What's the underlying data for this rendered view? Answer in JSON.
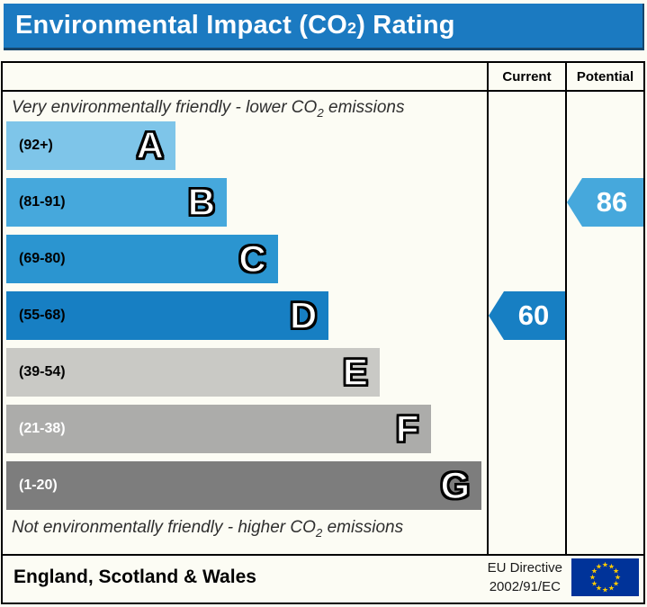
{
  "title": {
    "prefix": "Environmental Impact (CO",
    "sub": "2",
    "suffix": ") Rating"
  },
  "colors": {
    "title_bg": "#1b7ac1",
    "eu_flag_bg": "#003399",
    "eu_star": "#ffcc00"
  },
  "header": {
    "current": "Current",
    "potential": "Potential"
  },
  "notes": {
    "top": {
      "prefix": "Very environmentally friendly - lower CO",
      "sub": "2",
      "suffix": " emissions"
    },
    "bottom": {
      "prefix": "Not environmentally friendly - higher CO",
      "sub": "2",
      "suffix": " emissions"
    }
  },
  "chart_data": {
    "type": "bar",
    "title": "Environmental Impact (CO2) Rating",
    "bands": [
      {
        "letter": "A",
        "range_label": "(92+)",
        "range_min": 92,
        "range_max": null,
        "color": "#7ec5e9",
        "width_pct": 35.2,
        "label_color": "#000000"
      },
      {
        "letter": "B",
        "range_label": "(81-91)",
        "range_min": 81,
        "range_max": 91,
        "color": "#46a8dc",
        "width_pct": 45.9,
        "label_color": "#000000"
      },
      {
        "letter": "C",
        "range_label": "(69-80)",
        "range_min": 69,
        "range_max": 80,
        "color": "#2b95d0",
        "width_pct": 56.5,
        "label_color": "#000000"
      },
      {
        "letter": "D",
        "range_label": "(55-68)",
        "range_min": 55,
        "range_max": 68,
        "color": "#177fc3",
        "width_pct": 67.1,
        "label_color": "#000000"
      },
      {
        "letter": "E",
        "range_label": "(39-54)",
        "range_min": 39,
        "range_max": 54,
        "color": "#c9c9c5",
        "width_pct": 77.7,
        "label_color": "#000000"
      },
      {
        "letter": "F",
        "range_label": "(21-38)",
        "range_min": 21,
        "range_max": 38,
        "color": "#acacaa",
        "width_pct": 88.3,
        "label_color": "#ffffff"
      },
      {
        "letter": "G",
        "range_label": "(1-20)",
        "range_min": 1,
        "range_max": 20,
        "color": "#7d7d7d",
        "width_pct": 98.9,
        "label_color": "#ffffff"
      }
    ],
    "current": {
      "value": "60",
      "band": "D",
      "color": "#177fc3"
    },
    "potential": {
      "value": "86",
      "band": "B",
      "color": "#46a8dc"
    }
  },
  "footer": {
    "region": "England, Scotland & Wales",
    "directive_line1": "EU Directive",
    "directive_line2": "2002/91/EC"
  }
}
